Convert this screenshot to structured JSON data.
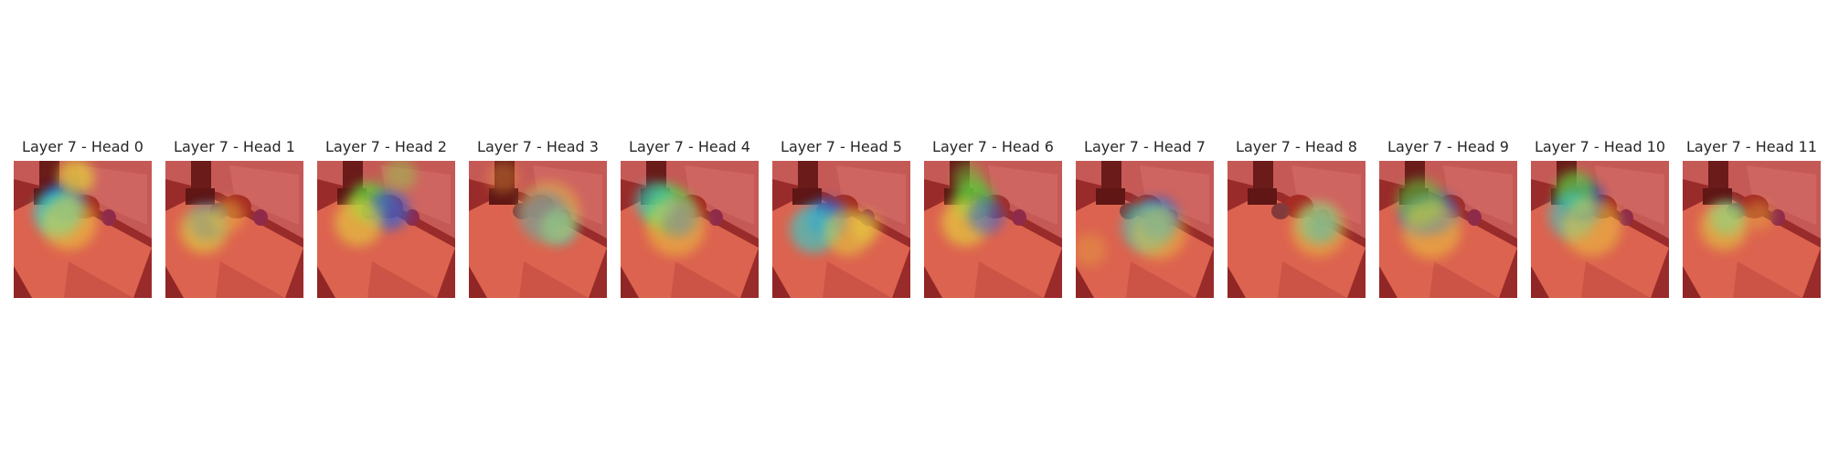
{
  "panels": [
    {
      "title": "Layer 7 - Head 0",
      "heat": [
        [
          0.37,
          0.3,
          22,
          "#1f2fbf",
          0.9
        ],
        [
          0.32,
          0.38,
          26,
          "#36d2c8",
          0.8
        ],
        [
          0.45,
          0.12,
          20,
          "#e5d33b",
          0.7
        ],
        [
          0.4,
          0.45,
          30,
          "#f0d23a",
          0.55
        ]
      ]
    },
    {
      "title": "Layer 7 - Head 1",
      "heat": [
        [
          0.3,
          0.45,
          20,
          "#2a4ad0",
          0.85
        ],
        [
          0.28,
          0.5,
          26,
          "#e6d43c",
          0.65
        ],
        [
          0.45,
          0.4,
          18,
          "#f1c43a",
          0.45
        ]
      ]
    },
    {
      "title": "Layer 7 - Head 2",
      "heat": [
        [
          0.38,
          0.3,
          22,
          "#6bc83b",
          0.85
        ],
        [
          0.52,
          0.36,
          22,
          "#3b5fd0",
          0.75
        ],
        [
          0.3,
          0.45,
          26,
          "#e6d43c",
          0.6
        ],
        [
          0.6,
          0.1,
          18,
          "#8ed249",
          0.45
        ]
      ]
    },
    {
      "title": "Layer 7 - Head 3",
      "heat": [
        [
          0.55,
          0.4,
          26,
          "#2f55d2",
          0.85
        ],
        [
          0.65,
          0.48,
          20,
          "#3ec9c4",
          0.7
        ],
        [
          0.58,
          0.38,
          34,
          "#f0d23a",
          0.45
        ],
        [
          0.25,
          0.12,
          18,
          "#f2a23a",
          0.35
        ]
      ]
    },
    {
      "title": "Layer 7 - Head 4",
      "heat": [
        [
          0.35,
          0.35,
          26,
          "#6bc83b",
          0.85
        ],
        [
          0.42,
          0.42,
          20,
          "#2f55d2",
          0.8
        ],
        [
          0.25,
          0.3,
          22,
          "#38cfc6",
          0.6
        ],
        [
          0.4,
          0.48,
          32,
          "#f0d23a",
          0.5
        ]
      ]
    },
    {
      "title": "Layer 7 - Head 5",
      "heat": [
        [
          0.4,
          0.42,
          22,
          "#3a64d2",
          0.8
        ],
        [
          0.3,
          0.5,
          26,
          "#3ec9c4",
          0.7
        ],
        [
          0.55,
          0.52,
          26,
          "#e6d43c",
          0.55
        ],
        [
          0.68,
          0.48,
          16,
          "#e6d43c",
          0.5
        ]
      ]
    },
    {
      "title": "Layer 7 - Head 6",
      "heat": [
        [
          0.36,
          0.28,
          22,
          "#5fc13a",
          0.85
        ],
        [
          0.3,
          0.45,
          26,
          "#e6d43c",
          0.65
        ],
        [
          0.45,
          0.4,
          20,
          "#3a64d2",
          0.55
        ],
        [
          0.32,
          0.12,
          16,
          "#6bc83b",
          0.5
        ]
      ]
    },
    {
      "title": "Layer 7 - Head 7",
      "heat": [
        [
          0.6,
          0.42,
          22,
          "#2f55d2",
          0.85
        ],
        [
          0.52,
          0.48,
          28,
          "#3ec9c4",
          0.6
        ],
        [
          0.6,
          0.52,
          30,
          "#f0d23a",
          0.45
        ],
        [
          0.1,
          0.65,
          18,
          "#e7b33a",
          0.35
        ]
      ]
    },
    {
      "title": "Layer 7 - Head 8",
      "heat": [
        [
          0.68,
          0.48,
          14,
          "#1f2fbf",
          0.9
        ],
        [
          0.66,
          0.46,
          22,
          "#3ec9c4",
          0.7
        ],
        [
          0.66,
          0.5,
          30,
          "#f0d23a",
          0.45
        ]
      ]
    },
    {
      "title": "Layer 7 - Head 9",
      "heat": [
        [
          0.3,
          0.4,
          22,
          "#3a64d2",
          0.8
        ],
        [
          0.42,
          0.38,
          22,
          "#2f55d2",
          0.75
        ],
        [
          0.3,
          0.3,
          26,
          "#6bc83b",
          0.6
        ],
        [
          0.38,
          0.5,
          32,
          "#f0d23a",
          0.5
        ]
      ]
    },
    {
      "title": "Layer 7 - Head 10",
      "heat": [
        [
          0.38,
          0.3,
          22,
          "#1f2fbf",
          0.9
        ],
        [
          0.32,
          0.22,
          22,
          "#6bc83b",
          0.75
        ],
        [
          0.3,
          0.4,
          26,
          "#3ec9c4",
          0.6
        ],
        [
          0.44,
          0.48,
          32,
          "#f0d23a",
          0.5
        ]
      ]
    },
    {
      "title": "Layer 7 - Head 11",
      "heat": [
        [
          0.32,
          0.42,
          18,
          "#3ec9c4",
          0.75
        ],
        [
          0.3,
          0.48,
          26,
          "#e6d43c",
          0.55
        ],
        [
          0.55,
          0.4,
          16,
          "#e7b33a",
          0.4
        ]
      ]
    }
  ]
}
